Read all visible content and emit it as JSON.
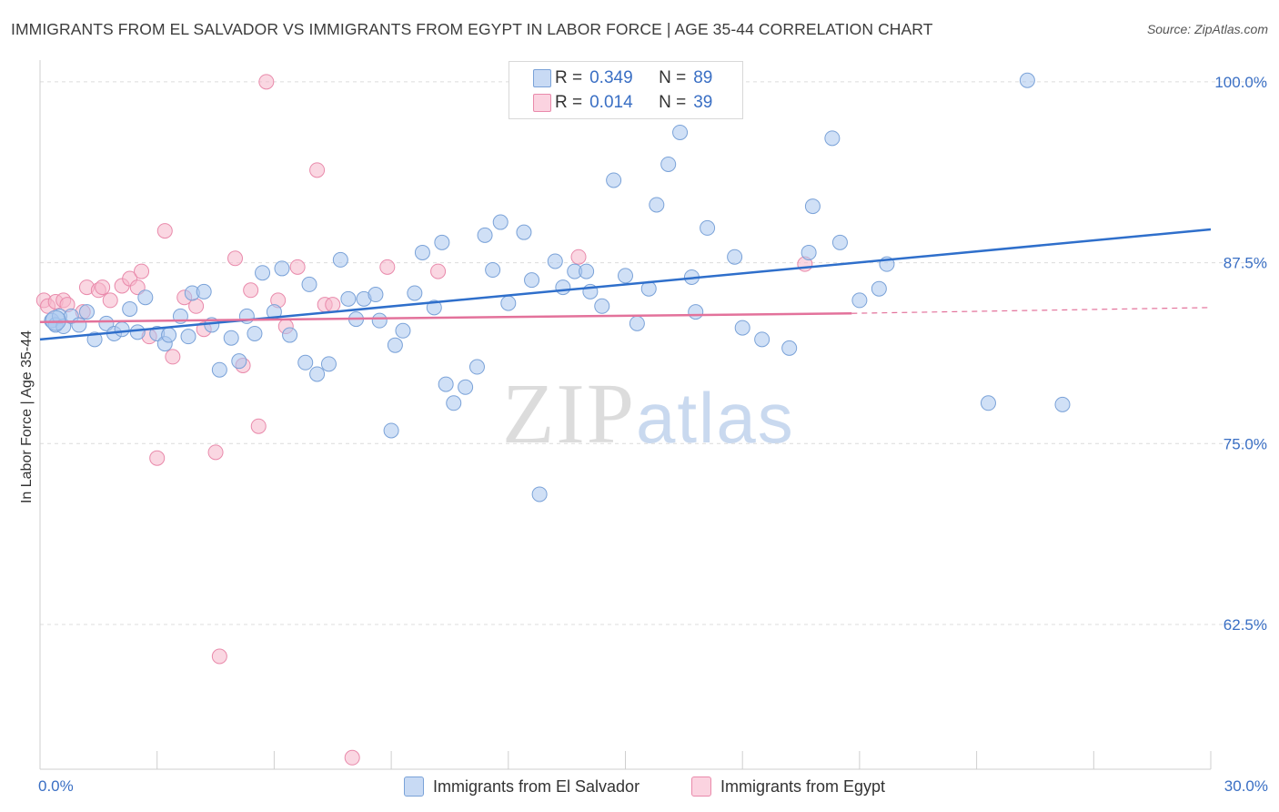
{
  "title": "IMMIGRANTS FROM EL SALVADOR VS IMMIGRANTS FROM EGYPT IN LABOR FORCE | AGE 35-44 CORRELATION CHART",
  "source": "Source: ZipAtlas.com",
  "watermark": {
    "zip": "ZIP",
    "atlas": "atlas"
  },
  "legend_top": [
    {
      "r_label": "R =",
      "r_value": "0.349",
      "n_label": "N =",
      "n_value": "89",
      "color": "#a9c6ee"
    },
    {
      "r_label": "R =",
      "r_value": "0.014",
      "n_label": "N =",
      "n_value": "39",
      "color": "#f5b6cb"
    }
  ],
  "colors": {
    "blue_fill": "#a9c6ee",
    "blue_stroke": "#7aa2d8",
    "blue_line": "#2f6fcb",
    "pink_fill": "#f5b6cb",
    "pink_stroke": "#e98aab",
    "pink_line": "#e3729b",
    "tick_label": "#3a6fc4",
    "grid": "#dcdcdc"
  },
  "chart_data": {
    "type": "scatter",
    "title": "IMMIGRANTS FROM EL SALVADOR VS IMMIGRANTS FROM EGYPT IN LABOR FORCE | AGE 35-44 CORRELATION CHART",
    "xlabel": "",
    "ylabel": "In Labor Force | Age 35-44",
    "xlim": [
      0,
      30
    ],
    "ylim": [
      52.5,
      101.5
    ],
    "x_tick_labels": [
      "0.0%",
      "30.0%"
    ],
    "y_ticks": [
      100,
      87.5,
      75,
      62.5
    ],
    "y_tick_labels": [
      "100.0%",
      "87.5%",
      "75.0%",
      "62.5%"
    ],
    "grid": true,
    "legend_position": "bottom",
    "series": [
      {
        "name": "Immigrants from El Salvador",
        "R": 0.349,
        "N": 89,
        "trend": {
          "x": [
            0,
            30
          ],
          "y": [
            82.2,
            89.8
          ]
        },
        "points": [
          [
            0.3,
            83.5
          ],
          [
            0.4,
            83.2
          ],
          [
            0.5,
            83.8
          ],
          [
            0.6,
            83.1
          ],
          [
            0.8,
            83.8
          ],
          [
            1.0,
            83.2
          ],
          [
            1.2,
            84.1
          ],
          [
            1.4,
            82.2
          ],
          [
            1.7,
            83.3
          ],
          [
            1.9,
            82.6
          ],
          [
            2.1,
            82.9
          ],
          [
            2.3,
            84.3
          ],
          [
            2.5,
            82.7
          ],
          [
            2.7,
            85.1
          ],
          [
            3.0,
            82.6
          ],
          [
            3.2,
            81.9
          ],
          [
            3.3,
            82.5
          ],
          [
            3.6,
            83.8
          ],
          [
            3.8,
            82.4
          ],
          [
            3.9,
            85.4
          ],
          [
            4.2,
            85.5
          ],
          [
            4.4,
            83.2
          ],
          [
            4.6,
            80.1
          ],
          [
            4.9,
            82.3
          ],
          [
            5.1,
            80.7
          ],
          [
            5.3,
            83.8
          ],
          [
            5.5,
            82.6
          ],
          [
            5.7,
            86.8
          ],
          [
            6.0,
            84.1
          ],
          [
            6.2,
            87.1
          ],
          [
            6.4,
            82.5
          ],
          [
            6.8,
            80.6
          ],
          [
            6.9,
            86.0
          ],
          [
            7.1,
            79.8
          ],
          [
            7.4,
            80.5
          ],
          [
            7.7,
            87.7
          ],
          [
            7.9,
            85.0
          ],
          [
            8.1,
            83.6
          ],
          [
            8.3,
            85.0
          ],
          [
            8.6,
            85.3
          ],
          [
            8.7,
            83.5
          ],
          [
            9.0,
            75.9
          ],
          [
            9.1,
            81.8
          ],
          [
            9.3,
            82.8
          ],
          [
            9.6,
            85.4
          ],
          [
            9.8,
            88.2
          ],
          [
            10.1,
            84.4
          ],
          [
            10.3,
            88.9
          ],
          [
            10.4,
            79.1
          ],
          [
            10.6,
            77.8
          ],
          [
            10.9,
            78.9
          ],
          [
            11.2,
            80.3
          ],
          [
            11.4,
            89.4
          ],
          [
            11.6,
            87.0
          ],
          [
            11.8,
            90.3
          ],
          [
            12.0,
            84.7
          ],
          [
            12.4,
            89.6
          ],
          [
            12.6,
            86.3
          ],
          [
            12.8,
            71.5
          ],
          [
            13.2,
            87.6
          ],
          [
            13.4,
            85.8
          ],
          [
            13.7,
            86.9
          ],
          [
            14.0,
            86.9
          ],
          [
            14.1,
            85.5
          ],
          [
            14.4,
            84.5
          ],
          [
            14.7,
            93.2
          ],
          [
            15.0,
            86.6
          ],
          [
            15.3,
            83.3
          ],
          [
            15.6,
            85.7
          ],
          [
            15.8,
            91.5
          ],
          [
            16.1,
            94.3
          ],
          [
            16.4,
            96.5
          ],
          [
            16.7,
            86.5
          ],
          [
            16.8,
            84.1
          ],
          [
            17.1,
            89.9
          ],
          [
            17.8,
            87.9
          ],
          [
            18.0,
            83.0
          ],
          [
            18.5,
            82.2
          ],
          [
            19.2,
            81.6
          ],
          [
            19.7,
            88.2
          ],
          [
            19.8,
            91.4
          ],
          [
            20.3,
            96.1
          ],
          [
            20.5,
            88.9
          ],
          [
            21.0,
            84.9
          ],
          [
            21.5,
            85.7
          ],
          [
            21.7,
            87.4
          ],
          [
            24.3,
            77.8
          ],
          [
            25.3,
            100.1
          ],
          [
            26.2,
            77.7
          ]
        ]
      },
      {
        "name": "Immigrants from Egypt",
        "R": 0.014,
        "N": 39,
        "trend": {
          "x": [
            0,
            20.8
          ],
          "y": [
            83.4,
            84.0
          ],
          "dashed_extension": {
            "x": [
              20.8,
              30
            ],
            "y": [
              84.0,
              84.4
            ]
          }
        },
        "points": [
          [
            0.1,
            84.9
          ],
          [
            0.2,
            84.5
          ],
          [
            0.4,
            84.8
          ],
          [
            0.6,
            84.9
          ],
          [
            0.7,
            84.6
          ],
          [
            1.1,
            84.1
          ],
          [
            1.2,
            85.8
          ],
          [
            1.5,
            85.6
          ],
          [
            1.6,
            85.8
          ],
          [
            1.8,
            84.9
          ],
          [
            2.1,
            85.9
          ],
          [
            2.3,
            86.4
          ],
          [
            2.5,
            85.8
          ],
          [
            2.6,
            86.9
          ],
          [
            2.8,
            82.4
          ],
          [
            3.0,
            74.0
          ],
          [
            3.2,
            89.7
          ],
          [
            3.4,
            81.0
          ],
          [
            3.7,
            85.1
          ],
          [
            4.0,
            84.5
          ],
          [
            4.2,
            82.9
          ],
          [
            4.5,
            74.4
          ],
          [
            4.6,
            60.3
          ],
          [
            5.0,
            87.8
          ],
          [
            5.2,
            80.4
          ],
          [
            5.4,
            85.6
          ],
          [
            5.6,
            76.2
          ],
          [
            5.8,
            100.0
          ],
          [
            6.1,
            84.9
          ],
          [
            6.3,
            83.1
          ],
          [
            6.6,
            87.2
          ],
          [
            7.1,
            93.9
          ],
          [
            7.3,
            84.6
          ],
          [
            7.5,
            84.6
          ],
          [
            8.0,
            53.3
          ],
          [
            8.9,
            87.2
          ],
          [
            10.2,
            86.9
          ],
          [
            13.8,
            87.9
          ],
          [
            19.6,
            87.4
          ]
        ]
      }
    ]
  }
}
